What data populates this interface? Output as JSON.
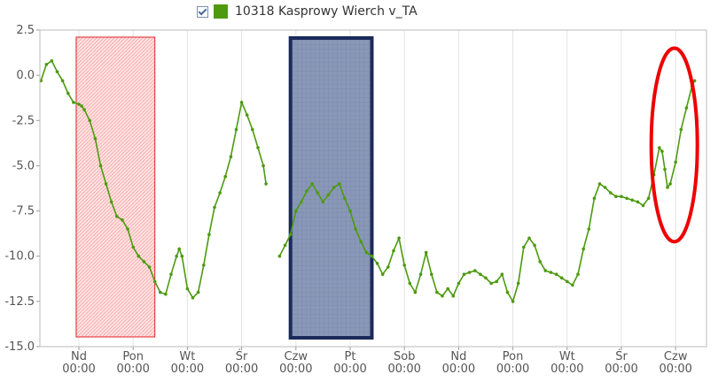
{
  "legend": {
    "checked": true,
    "label": "10318 Kasprowy Wierch v_TA",
    "color": "#4d9a0f"
  },
  "chart_data": {
    "type": "line",
    "title": "",
    "xlabel": "",
    "ylabel": "",
    "ylim": [
      -15.0,
      2.5
    ],
    "y_ticks": [
      "2.5",
      "0.0",
      "-2.5",
      "-5.0",
      "-7.5",
      "-10.0",
      "-12.5",
      "-15.0"
    ],
    "x_ticks": [
      {
        "day": "Nd",
        "time": "00:00"
      },
      {
        "day": "Pon",
        "time": "00:00"
      },
      {
        "day": "Wt",
        "time": "00:00"
      },
      {
        "day": "Śr",
        "time": "00:00"
      },
      {
        "day": "Czw",
        "time": "00:00"
      },
      {
        "day": "Pt",
        "time": "00:00"
      },
      {
        "day": "Sob",
        "time": "00:00"
      },
      {
        "day": "Nd",
        "time": "00:00"
      },
      {
        "day": "Pon",
        "time": "00:00"
      },
      {
        "day": "Wt",
        "time": "00:00"
      },
      {
        "day": "Śr",
        "time": "00:00"
      },
      {
        "day": "Czw",
        "time": "00:00"
      }
    ],
    "grid": "vertical",
    "series": [
      {
        "name": "10318 Kasprowy Wierch v_TA",
        "color": "#4d9a0f",
        "points": [
          [
            -0.7,
            -0.3
          ],
          [
            -0.6,
            0.6
          ],
          [
            -0.5,
            0.8
          ],
          [
            -0.4,
            0.2
          ],
          [
            -0.3,
            -0.3
          ],
          [
            -0.2,
            -1.0
          ],
          [
            -0.1,
            -1.5
          ],
          [
            0.0,
            -1.6
          ],
          [
            0.05,
            -1.7
          ],
          [
            0.1,
            -1.9
          ],
          [
            0.2,
            -2.5
          ],
          [
            0.3,
            -3.5
          ],
          [
            0.4,
            -5.0
          ],
          [
            0.5,
            -6.0
          ],
          [
            0.6,
            -7.0
          ],
          [
            0.7,
            -7.8
          ],
          [
            0.8,
            -8.0
          ],
          [
            0.9,
            -8.5
          ],
          [
            1.0,
            -9.5
          ],
          [
            1.1,
            -10.0
          ],
          [
            1.2,
            -10.3
          ],
          [
            1.3,
            -10.6
          ],
          [
            1.4,
            -11.4
          ],
          [
            1.5,
            -12.0
          ],
          [
            1.6,
            -12.1
          ],
          [
            1.7,
            -11.0
          ],
          [
            1.8,
            -10.0
          ],
          [
            1.85,
            -9.6
          ],
          [
            1.9,
            -10.0
          ],
          [
            2.0,
            -11.8
          ],
          [
            2.1,
            -12.3
          ],
          [
            2.2,
            -12.0
          ],
          [
            2.3,
            -10.5
          ],
          [
            2.4,
            -8.8
          ],
          [
            2.5,
            -7.3
          ],
          [
            2.6,
            -6.5
          ],
          [
            2.7,
            -5.6
          ],
          [
            2.8,
            -4.5
          ],
          [
            2.9,
            -3.0
          ],
          [
            3.0,
            -1.5
          ],
          [
            3.1,
            -2.2
          ],
          [
            3.2,
            -3.0
          ],
          [
            3.3,
            -4.0
          ],
          [
            3.4,
            -5.0
          ],
          [
            3.45,
            -6.0
          ],
          null,
          [
            3.7,
            -10.0
          ],
          [
            3.8,
            -9.4
          ],
          [
            3.9,
            -8.8
          ],
          [
            4.0,
            -7.5
          ],
          [
            4.1,
            -7.0
          ],
          [
            4.2,
            -6.4
          ],
          [
            4.3,
            -6.0
          ],
          [
            4.4,
            -6.5
          ],
          [
            4.5,
            -7.0
          ],
          [
            4.6,
            -6.6
          ],
          [
            4.7,
            -6.2
          ],
          [
            4.8,
            -6.0
          ],
          [
            4.9,
            -6.8
          ],
          [
            5.0,
            -7.5
          ],
          [
            5.1,
            -8.5
          ],
          [
            5.2,
            -9.2
          ],
          [
            5.3,
            -9.8
          ],
          [
            5.4,
            -10.0
          ],
          [
            5.5,
            -10.4
          ],
          [
            5.6,
            -11.0
          ],
          [
            5.7,
            -10.6
          ],
          [
            5.8,
            -9.7
          ],
          [
            5.9,
            -9.0
          ],
          [
            6.0,
            -10.5
          ],
          [
            6.1,
            -11.5
          ],
          [
            6.2,
            -12.0
          ],
          [
            6.3,
            -11.0
          ],
          [
            6.4,
            -9.8
          ],
          [
            6.5,
            -11.0
          ],
          [
            6.6,
            -12.0
          ],
          [
            6.7,
            -12.2
          ],
          [
            6.8,
            -11.8
          ],
          [
            6.9,
            -12.2
          ],
          [
            7.0,
            -11.5
          ],
          [
            7.1,
            -11.0
          ],
          [
            7.2,
            -10.9
          ],
          [
            7.3,
            -10.8
          ],
          [
            7.4,
            -11.0
          ],
          [
            7.5,
            -11.2
          ],
          [
            7.6,
            -11.5
          ],
          [
            7.7,
            -11.4
          ],
          [
            7.8,
            -11.0
          ],
          [
            7.9,
            -12.0
          ],
          [
            8.0,
            -12.5
          ],
          [
            8.1,
            -11.5
          ],
          [
            8.2,
            -9.5
          ],
          [
            8.3,
            -9.0
          ],
          [
            8.4,
            -9.4
          ],
          [
            8.5,
            -10.3
          ],
          [
            8.6,
            -10.8
          ],
          [
            8.7,
            -10.9
          ],
          [
            8.8,
            -11.0
          ],
          [
            8.9,
            -11.2
          ],
          [
            9.0,
            -11.4
          ],
          [
            9.1,
            -11.6
          ],
          [
            9.2,
            -11.0
          ],
          [
            9.3,
            -9.6
          ],
          [
            9.4,
            -8.5
          ],
          [
            9.5,
            -6.8
          ],
          [
            9.6,
            -6.0
          ],
          [
            9.7,
            -6.2
          ],
          [
            9.8,
            -6.5
          ],
          [
            9.9,
            -6.7
          ],
          [
            10.0,
            -6.7
          ],
          [
            10.1,
            -6.8
          ],
          [
            10.2,
            -6.9
          ],
          [
            10.3,
            -7.0
          ],
          [
            10.4,
            -7.2
          ],
          [
            10.5,
            -6.8
          ],
          [
            10.6,
            -5.5
          ],
          [
            10.7,
            -4.0
          ],
          [
            10.75,
            -4.2
          ],
          [
            10.8,
            -5.2
          ],
          [
            10.85,
            -6.2
          ],
          [
            10.9,
            -6.0
          ],
          [
            11.0,
            -4.8
          ],
          [
            11.1,
            -3.0
          ],
          [
            11.2,
            -1.8
          ],
          [
            11.3,
            -0.6
          ],
          [
            11.35,
            -0.3
          ]
        ]
      }
    ],
    "annotations": [
      {
        "type": "shaded-rect",
        "fill": "#ffe0e0",
        "stroke": "#e02020",
        "x0": -0.05,
        "x1": 1.4
      },
      {
        "type": "hatched-rect",
        "fill": "#8898b8",
        "stroke": "#1a2a5a",
        "x0": 3.9,
        "x1": 5.4
      },
      {
        "type": "ellipse",
        "stroke": "#ee0000",
        "x0": 10.55,
        "x1": 11.4,
        "y0": -9.2,
        "y1": 1.5
      }
    ]
  }
}
